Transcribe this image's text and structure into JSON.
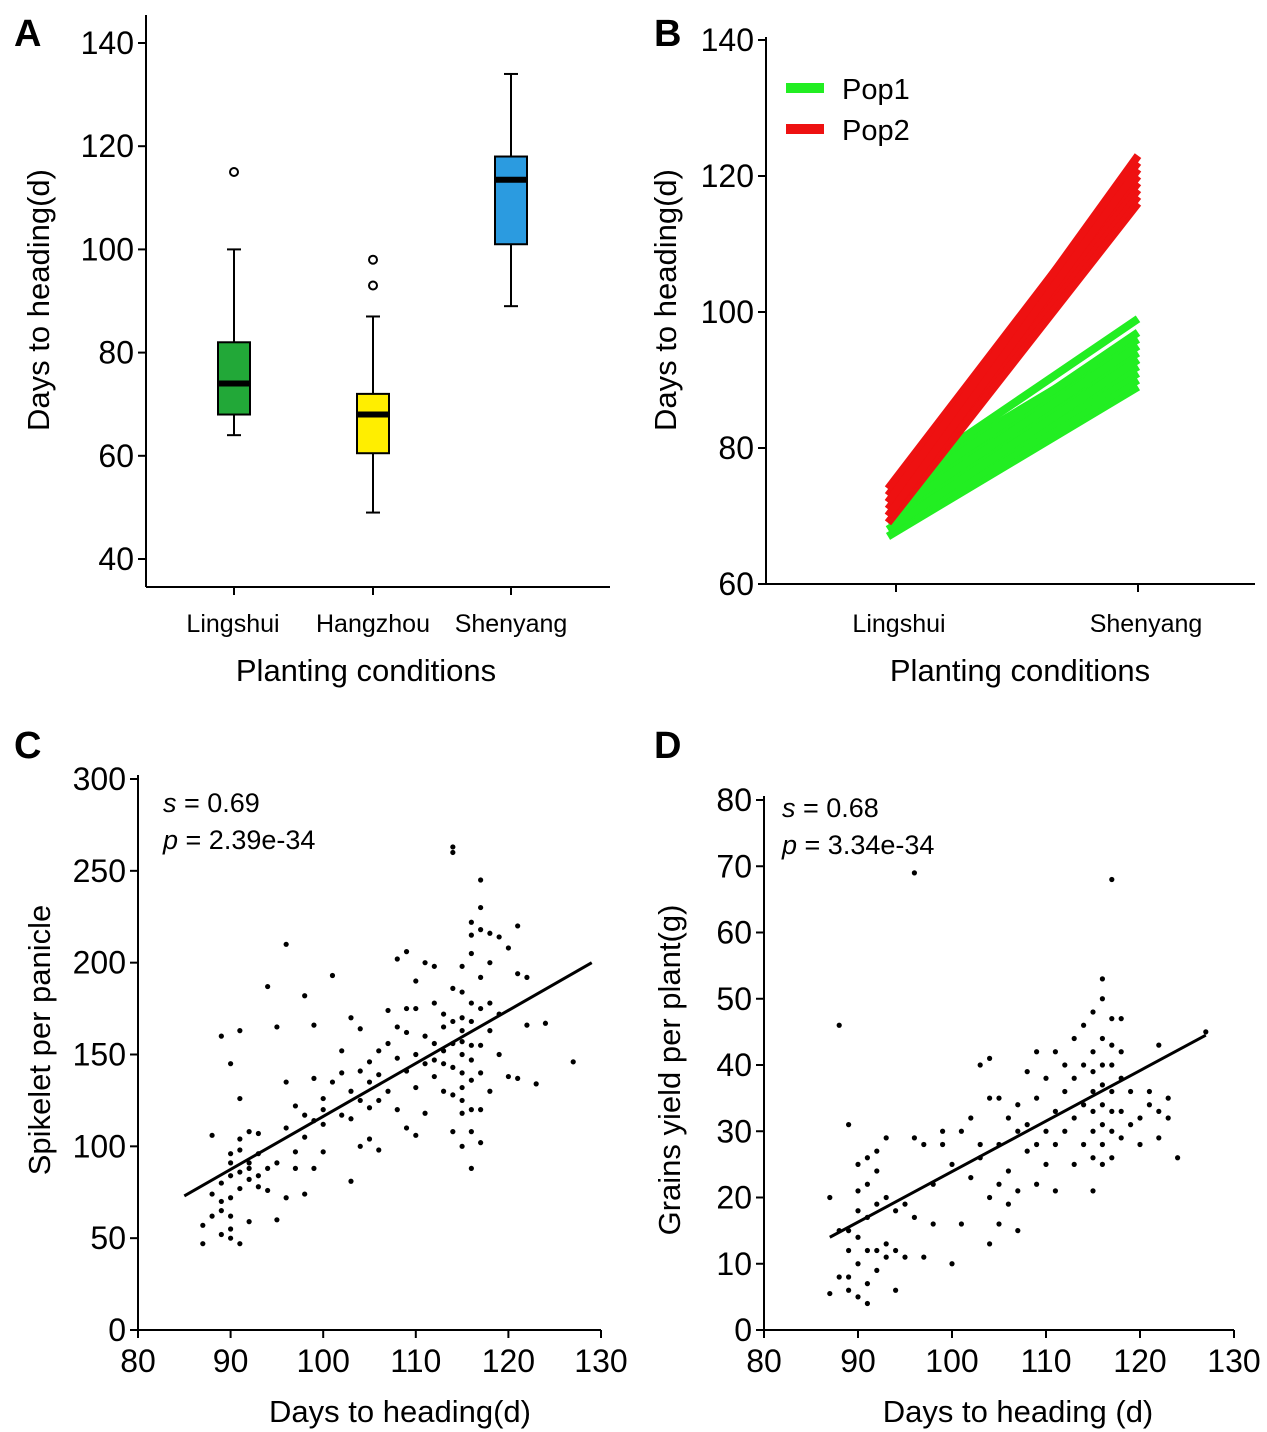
{
  "chart_data": [
    {
      "panel": "A",
      "type": "box",
      "xlabel": "Planting conditions",
      "ylabel": "Days to heading(d)",
      "ylim": [
        35,
        145
      ],
      "yticks": [
        40,
        60,
        80,
        100,
        120,
        140
      ],
      "categories": [
        "Lingshui",
        "Hangzhou",
        "Shenyang"
      ],
      "boxes": [
        {
          "name": "Lingshui",
          "whisker_low": 64,
          "q1": 68,
          "median": 74,
          "q3": 82,
          "whisker_high": 100,
          "outliers": [
            115
          ],
          "color": "#22a838"
        },
        {
          "name": "Hangzhou",
          "whisker_low": 49,
          "q1": 60.5,
          "median": 68,
          "q3": 72,
          "whisker_high": 87,
          "outliers": [
            93,
            98
          ],
          "color": "#ffee00"
        },
        {
          "name": "Shenyang",
          "whisker_low": 89,
          "q1": 101,
          "median": 113.5,
          "q3": 118,
          "whisker_high": 134,
          "outliers": [],
          "color": "#2b9be0"
        }
      ]
    },
    {
      "panel": "B",
      "type": "line",
      "xlabel": "Planting conditions",
      "ylabel": "Days to heading(d)",
      "categories": [
        "Lingshui",
        "Shenyang"
      ],
      "ylim": [
        60,
        140
      ],
      "yticks": [
        60,
        80,
        100,
        120,
        140
      ],
      "legend_position": "top-left",
      "series": [
        {
          "name": "Pop1",
          "color": "#22ee22",
          "lines": [
            [
              67,
              89
            ],
            [
              68,
              90
            ],
            [
              69,
              91
            ],
            [
              70,
              92
            ],
            [
              71,
              93
            ],
            [
              72,
              94
            ],
            [
              73,
              95
            ],
            [
              74,
              96
            ],
            [
              72,
              97
            ],
            [
              74,
              99
            ],
            [
              68,
              93
            ],
            [
              70,
              95
            ]
          ]
        },
        {
          "name": "Pop2",
          "color": "#ee1111",
          "lines": [
            [
              69,
              116
            ],
            [
              70,
              117
            ],
            [
              71,
              118
            ],
            [
              72,
              119
            ],
            [
              73,
              120
            ],
            [
              74,
              122
            ],
            [
              70,
              121
            ],
            [
              72,
              123
            ]
          ]
        }
      ]
    },
    {
      "panel": "C",
      "type": "scatter",
      "xlabel": "Days to heading(d)",
      "ylabel": "Spikelet per panicle",
      "xlim": [
        80,
        130
      ],
      "ylim": [
        0,
        300
      ],
      "xticks": [
        80,
        90,
        100,
        110,
        120,
        130
      ],
      "yticks": [
        0,
        50,
        100,
        150,
        200,
        250,
        300
      ],
      "annotation": {
        "s_label": "s",
        "s_value": " = 0.69",
        "p_label": "p",
        "p_value": " = 2.39e-34"
      },
      "fit": {
        "x": [
          85,
          129
        ],
        "y": [
          73,
          200
        ]
      },
      "points": [
        [
          87,
          47
        ],
        [
          87,
          57
        ],
        [
          88,
          62
        ],
        [
          88,
          74
        ],
        [
          88,
          106
        ],
        [
          89,
          52
        ],
        [
          89,
          65
        ],
        [
          89,
          70
        ],
        [
          89,
          80
        ],
        [
          89,
          160
        ],
        [
          90,
          50
        ],
        [
          90,
          55
        ],
        [
          90,
          62
        ],
        [
          90,
          72
        ],
        [
          90,
          84
        ],
        [
          90,
          91
        ],
        [
          90,
          96
        ],
        [
          90,
          145
        ],
        [
          91,
          47
        ],
        [
          91,
          77
        ],
        [
          91,
          86
        ],
        [
          91,
          98
        ],
        [
          91,
          104
        ],
        [
          91,
          126
        ],
        [
          91,
          163
        ],
        [
          92,
          59
        ],
        [
          92,
          82
        ],
        [
          92,
          88
        ],
        [
          92,
          91
        ],
        [
          92,
          108
        ],
        [
          93,
          78
        ],
        [
          93,
          84
        ],
        [
          93,
          96
        ],
        [
          93,
          107
        ],
        [
          94,
          76
        ],
        [
          94,
          88
        ],
        [
          94,
          187
        ],
        [
          95,
          60
        ],
        [
          95,
          91
        ],
        [
          95,
          165
        ],
        [
          96,
          72
        ],
        [
          96,
          110
        ],
        [
          96,
          135
        ],
        [
          96,
          210
        ],
        [
          97,
          88
        ],
        [
          97,
          97
        ],
        [
          97,
          122
        ],
        [
          98,
          74
        ],
        [
          98,
          105
        ],
        [
          98,
          117
        ],
        [
          98,
          182
        ],
        [
          99,
          88
        ],
        [
          99,
          114
        ],
        [
          99,
          137
        ],
        [
          99,
          166
        ],
        [
          100,
          97
        ],
        [
          100,
          112
        ],
        [
          100,
          120
        ],
        [
          100,
          126
        ],
        [
          101,
          135
        ],
        [
          101,
          193
        ],
        [
          102,
          117
        ],
        [
          102,
          140
        ],
        [
          102,
          152
        ],
        [
          103,
          81
        ],
        [
          103,
          115
        ],
        [
          103,
          130
        ],
        [
          103,
          170
        ],
        [
          104,
          100
        ],
        [
          104,
          125
        ],
        [
          104,
          141
        ],
        [
          104,
          164
        ],
        [
          105,
          104
        ],
        [
          105,
          121
        ],
        [
          105,
          135
        ],
        [
          105,
          146
        ],
        [
          106,
          98
        ],
        [
          106,
          125
        ],
        [
          106,
          139
        ],
        [
          106,
          152
        ],
        [
          107,
          130
        ],
        [
          107,
          156
        ],
        [
          107,
          174
        ],
        [
          108,
          120
        ],
        [
          108,
          148
        ],
        [
          108,
          165
        ],
        [
          108,
          202
        ],
        [
          109,
          110
        ],
        [
          109,
          141
        ],
        [
          109,
          162
        ],
        [
          109,
          175
        ],
        [
          109,
          206
        ],
        [
          110,
          106
        ],
        [
          110,
          132
        ],
        [
          110,
          150
        ],
        [
          110,
          175
        ],
        [
          110,
          190
        ],
        [
          111,
          118
        ],
        [
          111,
          145
        ],
        [
          111,
          160
        ],
        [
          111,
          200
        ],
        [
          112,
          138
        ],
        [
          112,
          147
        ],
        [
          112,
          156
        ],
        [
          112,
          178
        ],
        [
          112,
          198
        ],
        [
          113,
          130
        ],
        [
          113,
          145
        ],
        [
          113,
          152
        ],
        [
          113,
          165
        ],
        [
          113,
          172
        ],
        [
          114,
          108
        ],
        [
          114,
          128
        ],
        [
          114,
          143
        ],
        [
          114,
          156
        ],
        [
          114,
          168
        ],
        [
          114,
          186
        ],
        [
          114,
          260
        ],
        [
          114,
          263
        ],
        [
          115,
          100
        ],
        [
          115,
          118
        ],
        [
          115,
          125
        ],
        [
          115,
          132
        ],
        [
          115,
          140
        ],
        [
          115,
          150
        ],
        [
          115,
          157
        ],
        [
          115,
          163
        ],
        [
          115,
          170
        ],
        [
          115,
          184
        ],
        [
          115,
          198
        ],
        [
          116,
          88
        ],
        [
          116,
          108
        ],
        [
          116,
          120
        ],
        [
          116,
          136
        ],
        [
          116,
          147
        ],
        [
          116,
          155
        ],
        [
          116,
          168
        ],
        [
          116,
          178
        ],
        [
          116,
          205
        ],
        [
          116,
          215
        ],
        [
          116,
          222
        ],
        [
          117,
          102
        ],
        [
          117,
          120
        ],
        [
          117,
          140
        ],
        [
          117,
          155
        ],
        [
          117,
          175
        ],
        [
          117,
          192
        ],
        [
          117,
          218
        ],
        [
          117,
          230
        ],
        [
          117,
          245
        ],
        [
          118,
          130
        ],
        [
          118,
          163
        ],
        [
          118,
          178
        ],
        [
          118,
          200
        ],
        [
          118,
          216
        ],
        [
          119,
          150
        ],
        [
          119,
          172
        ],
        [
          119,
          214
        ],
        [
          120,
          138
        ],
        [
          120,
          208
        ],
        [
          121,
          137
        ],
        [
          121,
          194
        ],
        [
          121,
          220
        ],
        [
          122,
          166
        ],
        [
          122,
          192
        ],
        [
          123,
          134
        ],
        [
          124,
          167
        ],
        [
          127,
          146
        ]
      ]
    },
    {
      "panel": "D",
      "type": "scatter",
      "xlabel": "Days to heading  (d)",
      "ylabel": "Grains yield per plant(g)",
      "xlim": [
        80,
        130
      ],
      "ylim": [
        0,
        80
      ],
      "xticks": [
        80,
        90,
        100,
        110,
        120,
        130
      ],
      "yticks": [
        0,
        10,
        20,
        30,
        40,
        50,
        60,
        70,
        80
      ],
      "annotation": {
        "s_label": "s",
        "s_value": " = 0.68",
        "p_label": "p",
        "p_value": " = 3.34e-34"
      },
      "fit": {
        "x": [
          87,
          127
        ],
        "y": [
          14,
          44.5
        ]
      },
      "points": [
        [
          87,
          5.5
        ],
        [
          87,
          20
        ],
        [
          88,
          8
        ],
        [
          88,
          15
        ],
        [
          88,
          46
        ],
        [
          89,
          6
        ],
        [
          89,
          8
        ],
        [
          89,
          12
        ],
        [
          89,
          31
        ],
        [
          89,
          15
        ],
        [
          90,
          5
        ],
        [
          90,
          10
        ],
        [
          90,
          14
        ],
        [
          90,
          18
        ],
        [
          90,
          21
        ],
        [
          90,
          25
        ],
        [
          91,
          4
        ],
        [
          91,
          7
        ],
        [
          91,
          12
        ],
        [
          91,
          17
        ],
        [
          91,
          22
        ],
        [
          91,
          26
        ],
        [
          92,
          9
        ],
        [
          92,
          12
        ],
        [
          92,
          19
        ],
        [
          92,
          24
        ],
        [
          92,
          27
        ],
        [
          93,
          11
        ],
        [
          93,
          13
        ],
        [
          93,
          20
        ],
        [
          93,
          29
        ],
        [
          94,
          6
        ],
        [
          94,
          12
        ],
        [
          94,
          18
        ],
        [
          95,
          11
        ],
        [
          95,
          19
        ],
        [
          96,
          17
        ],
        [
          96,
          29
        ],
        [
          96,
          69
        ],
        [
          97,
          11
        ],
        [
          97,
          28
        ],
        [
          98,
          16
        ],
        [
          98,
          22
        ],
        [
          99,
          28
        ],
        [
          99,
          30
        ],
        [
          100,
          10
        ],
        [
          100,
          25
        ],
        [
          101,
          16
        ],
        [
          101,
          30
        ],
        [
          102,
          23
        ],
        [
          102,
          32
        ],
        [
          103,
          26
        ],
        [
          103,
          28
        ],
        [
          103,
          40
        ],
        [
          104,
          13
        ],
        [
          104,
          20
        ],
        [
          104,
          35
        ],
        [
          104,
          41
        ],
        [
          105,
          16
        ],
        [
          105,
          22
        ],
        [
          105,
          28
        ],
        [
          105,
          35
        ],
        [
          106,
          19
        ],
        [
          106,
          24
        ],
        [
          106,
          32
        ],
        [
          107,
          15
        ],
        [
          107,
          21
        ],
        [
          107,
          30
        ],
        [
          107,
          34
        ],
        [
          108,
          27
        ],
        [
          108,
          31
        ],
        [
          108,
          39
        ],
        [
          109,
          22
        ],
        [
          109,
          28
        ],
        [
          109,
          35
        ],
        [
          109,
          42
        ],
        [
          110,
          25
        ],
        [
          110,
          30
        ],
        [
          110,
          38
        ],
        [
          111,
          21
        ],
        [
          111,
          28
        ],
        [
          111,
          33
        ],
        [
          111,
          42
        ],
        [
          112,
          30
        ],
        [
          112,
          36
        ],
        [
          112,
          40
        ],
        [
          113,
          25
        ],
        [
          113,
          32
        ],
        [
          113,
          38
        ],
        [
          113,
          44
        ],
        [
          114,
          28
        ],
        [
          114,
          34
        ],
        [
          114,
          40
        ],
        [
          114,
          46
        ],
        [
          115,
          21
        ],
        [
          115,
          26
        ],
        [
          115,
          30
        ],
        [
          115,
          33
        ],
        [
          115,
          36
        ],
        [
          115,
          39
        ],
        [
          115,
          42
        ],
        [
          115,
          48
        ],
        [
          116,
          25
        ],
        [
          116,
          28
        ],
        [
          116,
          31
        ],
        [
          116,
          34
        ],
        [
          116,
          37
        ],
        [
          116,
          40
        ],
        [
          116,
          44
        ],
        [
          116,
          50
        ],
        [
          116,
          53
        ],
        [
          117,
          26
        ],
        [
          117,
          30
        ],
        [
          117,
          33
        ],
        [
          117,
          36
        ],
        [
          117,
          40
        ],
        [
          117,
          43
        ],
        [
          117,
          47
        ],
        [
          117,
          68
        ],
        [
          118,
          29
        ],
        [
          118,
          33
        ],
        [
          118,
          38
        ],
        [
          118,
          42
        ],
        [
          118,
          47
        ],
        [
          119,
          31
        ],
        [
          119,
          36
        ],
        [
          120,
          28
        ],
        [
          120,
          32
        ],
        [
          121,
          36
        ],
        [
          121,
          34
        ],
        [
          122,
          29
        ],
        [
          122,
          33
        ],
        [
          122,
          43
        ],
        [
          123,
          32
        ],
        [
          123,
          35
        ],
        [
          124,
          26
        ],
        [
          127,
          45
        ]
      ]
    }
  ]
}
